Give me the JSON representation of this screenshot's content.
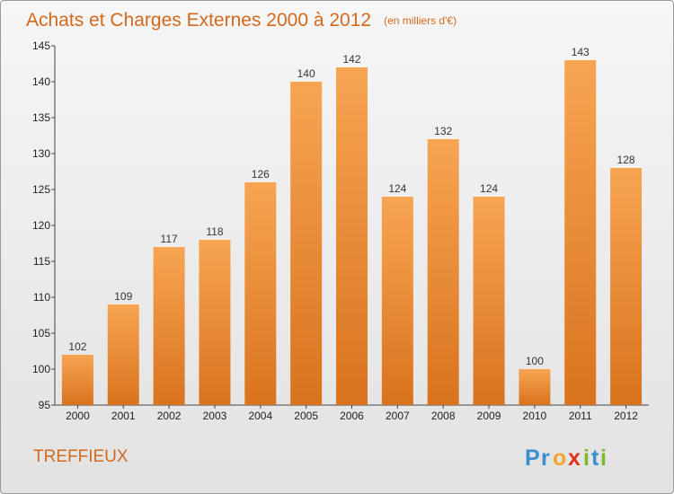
{
  "chart_data": {
    "type": "bar",
    "title": "Achats et Charges Externes 2000 à 2012",
    "subtitle": "(en milliers d'€)",
    "categories": [
      "2000",
      "2001",
      "2002",
      "2003",
      "2004",
      "2005",
      "2006",
      "2007",
      "2008",
      "2009",
      "2010",
      "2011",
      "2012"
    ],
    "values": [
      102,
      109,
      117,
      118,
      126,
      140,
      142,
      124,
      132,
      124,
      100,
      143,
      128
    ],
    "ylim": [
      95,
      145
    ],
    "yticks": [
      95,
      100,
      105,
      110,
      115,
      120,
      125,
      130,
      135,
      140,
      145
    ],
    "grid": false,
    "bar_color": "#f0923e"
  },
  "footer": {
    "commune": "TREFFIEUX",
    "logo": "Proxiti",
    "logo_letters": [
      "P",
      "r",
      "o",
      "x",
      "i",
      "t",
      "i"
    ],
    "logo_colors": [
      "#3a8fd0",
      "#3a8fd0",
      "#f2a72c",
      "#e2331b",
      "#7cb82f",
      "#3a8fd0",
      "#7cb82f"
    ]
  }
}
